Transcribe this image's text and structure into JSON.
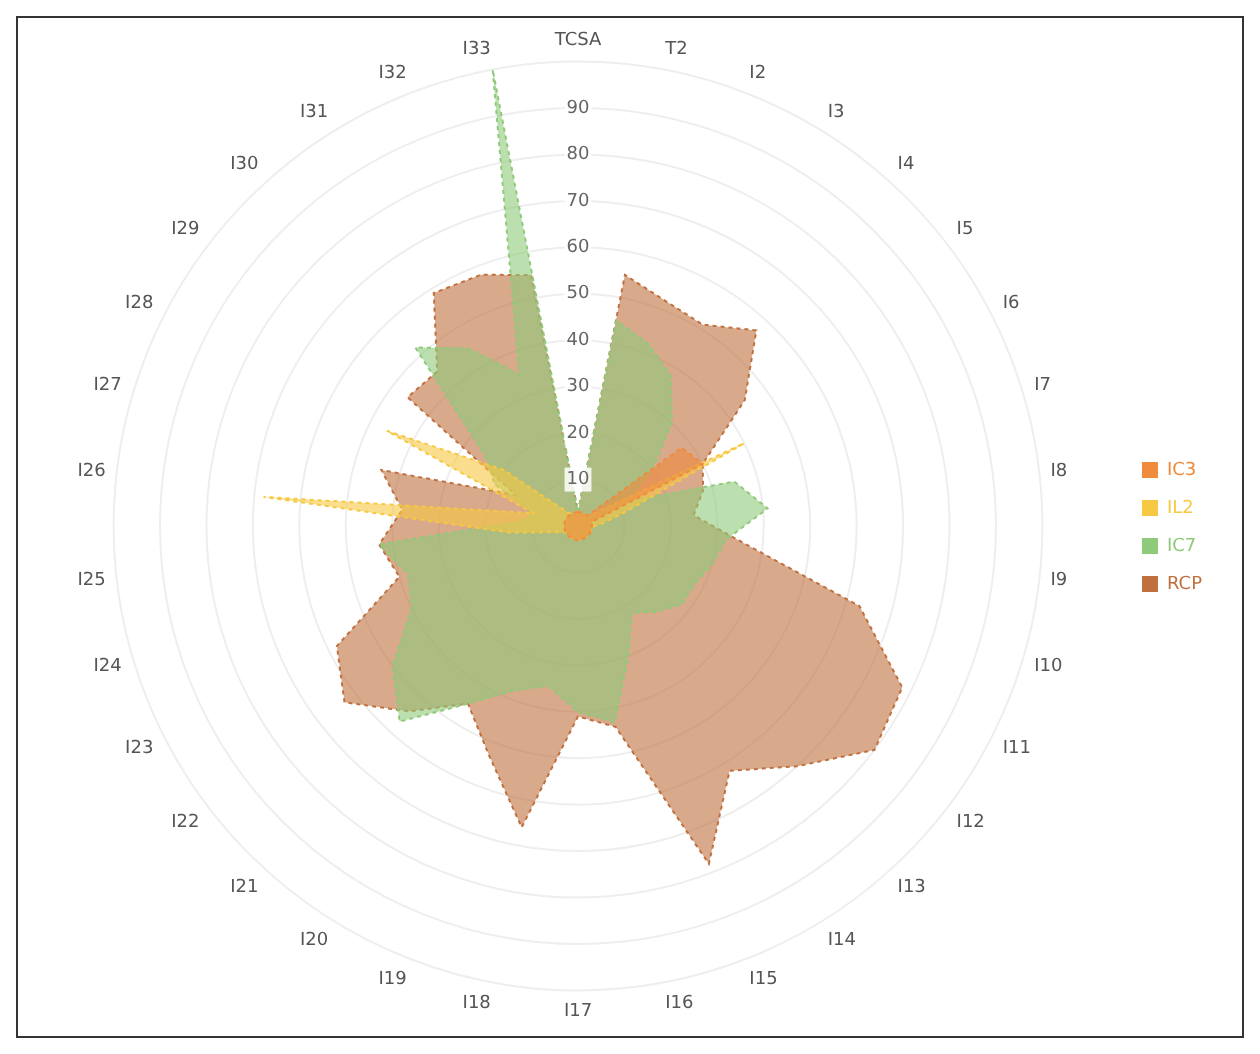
{
  "chart_data": {
    "type": "radar",
    "categories": [
      "TCSA",
      "T2",
      "I2",
      "I3",
      "I4",
      "I5",
      "I6",
      "I7",
      "I8",
      "I9",
      "I10",
      "I11",
      "I12",
      "I13",
      "I14",
      "I15",
      "I16",
      "I17",
      "I18",
      "I19",
      "I20",
      "I21",
      "I22",
      "I23",
      "I24",
      "I25",
      "I26",
      "I27",
      "I28",
      "I29",
      "I30",
      "I31",
      "I32",
      "I33"
    ],
    "series": [
      {
        "name": "IC3",
        "color": "#f08a3c",
        "values": [
          3,
          3,
          3,
          3,
          3,
          28,
          30,
          3,
          3,
          3,
          3,
          3,
          3,
          3,
          3,
          3,
          3,
          3,
          3,
          3,
          3,
          3,
          3,
          3,
          3,
          3,
          3,
          3,
          3,
          3,
          3,
          3,
          3,
          3
        ]
      },
      {
        "name": "IL2",
        "color": "#f7c842",
        "values": [
          3,
          3,
          3,
          3,
          3,
          5,
          40,
          10,
          5,
          3,
          3,
          3,
          3,
          3,
          3,
          3,
          3,
          3,
          3,
          3,
          3,
          3,
          3,
          3,
          5,
          15,
          68,
          10,
          46,
          20,
          5,
          3,
          3,
          3
        ]
      },
      {
        "name": "IC7",
        "color": "#8fc97a",
        "values": [
          3,
          45,
          42,
          38,
          30,
          20,
          12,
          35,
          41,
          32,
          30,
          28,
          28,
          25,
          22,
          30,
          43,
          40,
          35,
          38,
          45,
          57,
          50,
          40,
          38,
          43,
          12,
          10,
          20,
          25,
          52,
          45,
          35,
          100
        ]
      },
      {
        "name": "RCP",
        "color": "#c0703e",
        "values": [
          3,
          55,
          52,
          51,
          57,
          45,
          30,
          28,
          25,
          35,
          63,
          78,
          80,
          70,
          62,
          78,
          44,
          41,
          66,
          53,
          45,
          54,
          63,
          58,
          40,
          43,
          38,
          44,
          15,
          46,
          45,
          59,
          58,
          55
        ]
      }
    ],
    "ylim": [
      0,
      100
    ],
    "yticks": [
      10,
      20,
      30,
      40,
      50,
      60,
      70,
      80,
      90
    ],
    "grid": true,
    "legend": "right",
    "marker": "none",
    "line_style": "dotted"
  }
}
